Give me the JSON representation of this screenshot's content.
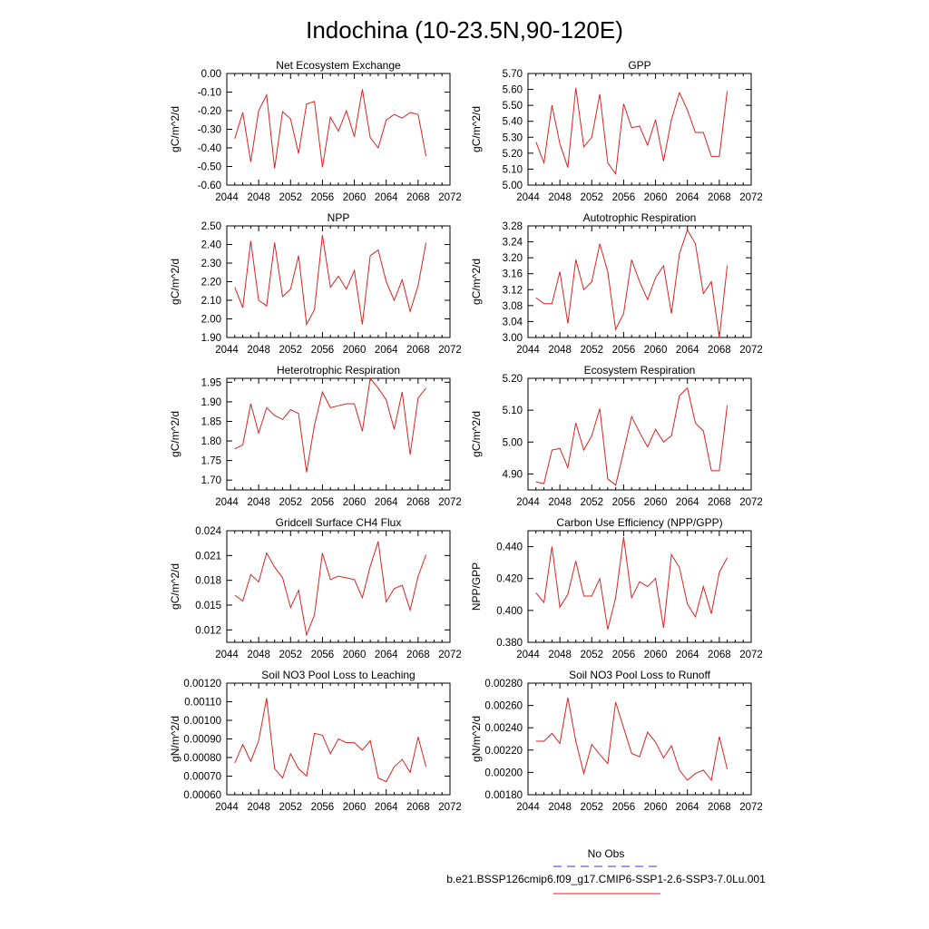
{
  "title": "Indochina (10-23.5N,90-120E)",
  "legend": {
    "entries": [
      {
        "label": "No Obs",
        "color": "#3333cc",
        "dash": true
      },
      {
        "label": "b.e21.BSSP126cmip6.f09_g17.CMIP6-SSP1-2.6-SSP3-7.0Lu.001",
        "color": "#dd2222",
        "dash": false
      }
    ],
    "placement": "bottom-right"
  },
  "chart_data": [
    {
      "type": "line",
      "title": "Net Ecosystem Exchange",
      "ylabel": "gC/m^2/d",
      "xlim": [
        2044,
        2072
      ],
      "xticks": [
        2044,
        2048,
        2052,
        2056,
        2060,
        2064,
        2068,
        2072
      ],
      "ylim": [
        -0.6,
        0.0
      ],
      "yticks": [
        "0.00",
        "-0.10",
        "-0.20",
        "-0.30",
        "-0.40",
        "-0.50",
        "-0.60"
      ],
      "x": [
        2045,
        2046,
        2047,
        2048,
        2049,
        2050,
        2051,
        2052,
        2053,
        2054,
        2055,
        2056,
        2057,
        2058,
        2059,
        2060,
        2061,
        2062,
        2063,
        2064,
        2065,
        2066,
        2067,
        2068,
        2069
      ],
      "series": [
        {
          "values": [
            -0.35,
            -0.21,
            -0.475,
            -0.2,
            -0.115,
            -0.51,
            -0.205,
            -0.245,
            -0.43,
            -0.165,
            -0.15,
            -0.505,
            -0.235,
            -0.31,
            -0.2,
            -0.34,
            -0.085,
            -0.345,
            -0.4,
            -0.25,
            -0.22,
            -0.24,
            -0.21,
            -0.22,
            -0.445
          ],
          "color": "#dd2222"
        }
      ]
    },
    {
      "type": "line",
      "title": "GPP",
      "ylabel": "gC/m^2/d",
      "xlim": [
        2044,
        2072
      ],
      "xticks": [
        2044,
        2048,
        2052,
        2056,
        2060,
        2064,
        2068,
        2072
      ],
      "ylim": [
        5.0,
        5.7
      ],
      "yticks": [
        "5.70",
        "5.60",
        "5.50",
        "5.40",
        "5.30",
        "5.20",
        "5.10",
        "5.00"
      ],
      "x": [
        2045,
        2046,
        2047,
        2048,
        2049,
        2050,
        2051,
        2052,
        2053,
        2054,
        2055,
        2056,
        2057,
        2058,
        2059,
        2060,
        2061,
        2062,
        2063,
        2064,
        2065,
        2066,
        2067,
        2068,
        2069
      ],
      "series": [
        {
          "values": [
            5.27,
            5.14,
            5.5,
            5.26,
            5.11,
            5.61,
            5.24,
            5.3,
            5.57,
            5.14,
            5.07,
            5.51,
            5.36,
            5.37,
            5.25,
            5.41,
            5.15,
            5.41,
            5.58,
            5.47,
            5.33,
            5.33,
            5.18,
            5.18,
            5.59
          ],
          "color": "#dd2222"
        }
      ]
    },
    {
      "type": "line",
      "title": "NPP",
      "ylabel": "gC/m^2/d",
      "xlim": [
        2044,
        2072
      ],
      "xticks": [
        2044,
        2048,
        2052,
        2056,
        2060,
        2064,
        2068,
        2072
      ],
      "ylim": [
        1.9,
        2.5
      ],
      "yticks": [
        "2.50",
        "2.40",
        "2.30",
        "2.20",
        "2.10",
        "2.00",
        "1.90"
      ],
      "x": [
        2045,
        2046,
        2047,
        2048,
        2049,
        2050,
        2051,
        2052,
        2053,
        2054,
        2055,
        2056,
        2057,
        2058,
        2059,
        2060,
        2061,
        2062,
        2063,
        2064,
        2065,
        2066,
        2067,
        2068,
        2069
      ],
      "series": [
        {
          "values": [
            2.17,
            2.06,
            2.42,
            2.1,
            2.07,
            2.41,
            2.12,
            2.16,
            2.34,
            1.97,
            2.05,
            2.45,
            2.17,
            2.23,
            2.16,
            2.26,
            1.97,
            2.34,
            2.37,
            2.2,
            2.1,
            2.21,
            2.04,
            2.18,
            2.41
          ],
          "color": "#dd2222"
        }
      ]
    },
    {
      "type": "line",
      "title": "Autotrophic Respiration",
      "ylabel": "gC/m^2/d",
      "xlim": [
        2044,
        2072
      ],
      "xticks": [
        2044,
        2048,
        2052,
        2056,
        2060,
        2064,
        2068,
        2072
      ],
      "ylim": [
        3.0,
        3.28
      ],
      "yticks": [
        "3.28",
        "3.24",
        "3.20",
        "3.16",
        "3.12",
        "3.08",
        "3.04",
        "3.00"
      ],
      "x": [
        2045,
        2046,
        2047,
        2048,
        2049,
        2050,
        2051,
        2052,
        2053,
        2054,
        2055,
        2056,
        2057,
        2058,
        2059,
        2060,
        2061,
        2062,
        2063,
        2064,
        2065,
        2066,
        2067,
        2068,
        2069
      ],
      "series": [
        {
          "values": [
            3.1,
            3.085,
            3.085,
            3.165,
            3.035,
            3.195,
            3.12,
            3.14,
            3.235,
            3.165,
            3.02,
            3.06,
            3.195,
            3.14,
            3.095,
            3.15,
            3.18,
            3.06,
            3.21,
            3.27,
            3.235,
            3.11,
            3.14,
            3.0,
            3.18
          ],
          "color": "#dd2222"
        }
      ]
    },
    {
      "type": "line",
      "title": "Heterotrophic Respiration",
      "ylabel": "gC/m^2/d",
      "xlim": [
        2044,
        2072
      ],
      "xticks": [
        2044,
        2048,
        2052,
        2056,
        2060,
        2064,
        2068,
        2072
      ],
      "ylim": [
        1.675,
        1.96
      ],
      "yticks": [
        "1.95",
        "1.90",
        "1.85",
        "1.80",
        "1.75",
        "1.70"
      ],
      "x": [
        2045,
        2046,
        2047,
        2048,
        2049,
        2050,
        2051,
        2052,
        2053,
        2054,
        2055,
        2056,
        2057,
        2058,
        2059,
        2060,
        2061,
        2062,
        2063,
        2064,
        2065,
        2066,
        2067,
        2068,
        2069
      ],
      "series": [
        {
          "values": [
            1.78,
            1.79,
            1.895,
            1.82,
            1.885,
            1.865,
            1.855,
            1.88,
            1.87,
            1.72,
            1.84,
            1.925,
            1.885,
            1.89,
            1.895,
            1.895,
            1.825,
            1.96,
            1.935,
            1.905,
            1.83,
            1.925,
            1.765,
            1.91,
            1.935
          ],
          "color": "#dd2222"
        }
      ]
    },
    {
      "type": "line",
      "title": "Ecosystem Respiration",
      "ylabel": "gC/m^2/d",
      "xlim": [
        2044,
        2072
      ],
      "xticks": [
        2044,
        2048,
        2052,
        2056,
        2060,
        2064,
        2068,
        2072
      ],
      "ylim": [
        4.85,
        5.2
      ],
      "yticks": [
        "5.20",
        "5.10",
        "5.00",
        "4.90"
      ],
      "x": [
        2045,
        2046,
        2047,
        2048,
        2049,
        2050,
        2051,
        2052,
        2053,
        2054,
        2055,
        2056,
        2057,
        2058,
        2059,
        2060,
        2061,
        2062,
        2063,
        2064,
        2065,
        2066,
        2067,
        2068,
        2069
      ],
      "series": [
        {
          "values": [
            4.875,
            4.87,
            4.975,
            4.98,
            4.92,
            5.06,
            4.975,
            5.02,
            5.105,
            4.885,
            4.865,
            4.97,
            5.08,
            5.03,
            4.985,
            5.04,
            5.0,
            5.02,
            5.145,
            5.17,
            5.06,
            5.035,
            4.91,
            4.91,
            5.115
          ],
          "color": "#dd2222"
        }
      ]
    },
    {
      "type": "line",
      "title": "Gridcell Surface CH4 Flux",
      "ylabel": "gC/m^2/d",
      "xlim": [
        2044,
        2072
      ],
      "xticks": [
        2044,
        2048,
        2052,
        2056,
        2060,
        2064,
        2068,
        2072
      ],
      "ylim": [
        0.0105,
        0.024
      ],
      "yticks": [
        "0.024",
        "0.021",
        "0.018",
        "0.015",
        "0.012"
      ],
      "x": [
        2045,
        2046,
        2047,
        2048,
        2049,
        2050,
        2051,
        2052,
        2053,
        2054,
        2055,
        2056,
        2057,
        2058,
        2059,
        2060,
        2061,
        2062,
        2063,
        2064,
        2065,
        2066,
        2067,
        2068,
        2069
      ],
      "series": [
        {
          "values": [
            0.0162,
            0.0155,
            0.0187,
            0.0178,
            0.0213,
            0.0196,
            0.0183,
            0.0147,
            0.0168,
            0.0114,
            0.0138,
            0.0213,
            0.0181,
            0.0185,
            0.0183,
            0.0181,
            0.0159,
            0.0197,
            0.0227,
            0.0154,
            0.017,
            0.0174,
            0.0144,
            0.0185,
            0.0211
          ],
          "color": "#dd2222"
        }
      ]
    },
    {
      "type": "line",
      "title": "Carbon Use Efficiency (NPP/GPP)",
      "ylabel": "NPP/GPP",
      "xlim": [
        2044,
        2072
      ],
      "xticks": [
        2044,
        2048,
        2052,
        2056,
        2060,
        2064,
        2068,
        2072
      ],
      "ylim": [
        0.38,
        0.45
      ],
      "yticks": [
        "0.440",
        "0.420",
        "0.400",
        "0.380"
      ],
      "x": [
        2045,
        2046,
        2047,
        2048,
        2049,
        2050,
        2051,
        2052,
        2053,
        2054,
        2055,
        2056,
        2057,
        2058,
        2059,
        2060,
        2061,
        2062,
        2063,
        2064,
        2065,
        2066,
        2067,
        2068,
        2069
      ],
      "series": [
        {
          "values": [
            0.411,
            0.405,
            0.44,
            0.402,
            0.41,
            0.431,
            0.409,
            0.409,
            0.42,
            0.388,
            0.408,
            0.446,
            0.408,
            0.418,
            0.415,
            0.42,
            0.389,
            0.435,
            0.427,
            0.404,
            0.396,
            0.415,
            0.398,
            0.424,
            0.433
          ],
          "color": "#dd2222"
        }
      ]
    },
    {
      "type": "line",
      "title": "Soil NO3 Pool Loss to Leaching",
      "ylabel": "gN/m^2/d",
      "xlim": [
        2044,
        2072
      ],
      "xticks": [
        2044,
        2048,
        2052,
        2056,
        2060,
        2064,
        2068,
        2072
      ],
      "ylim": [
        0.0006,
        0.0012
      ],
      "yticks": [
        "0.00120",
        "0.00110",
        "0.00100",
        "0.00090",
        "0.00080",
        "0.00070",
        "0.00060"
      ],
      "x": [
        2045,
        2046,
        2047,
        2048,
        2049,
        2050,
        2051,
        2052,
        2053,
        2054,
        2055,
        2056,
        2057,
        2058,
        2059,
        2060,
        2061,
        2062,
        2063,
        2064,
        2065,
        2066,
        2067,
        2068,
        2069
      ],
      "series": [
        {
          "values": [
            0.00077,
            0.00087,
            0.00078,
            0.00089,
            0.00112,
            0.00074,
            0.00069,
            0.00082,
            0.00074,
            0.0007,
            0.00093,
            0.00092,
            0.00082,
            0.0009,
            0.00088,
            0.00088,
            0.00084,
            0.00089,
            0.00069,
            0.00067,
            0.00075,
            0.00079,
            0.00072,
            0.00091,
            0.00075
          ],
          "color": "#dd2222"
        }
      ]
    },
    {
      "type": "line",
      "title": "Soil NO3 Pool Loss to Runoff",
      "ylabel": "gN/m^2/d",
      "xlim": [
        2044,
        2072
      ],
      "xticks": [
        2044,
        2048,
        2052,
        2056,
        2060,
        2064,
        2068,
        2072
      ],
      "ylim": [
        0.0018,
        0.0028
      ],
      "yticks": [
        "0.00280",
        "0.00260",
        "0.00240",
        "0.00220",
        "0.00200",
        "0.00180"
      ],
      "x": [
        2045,
        2046,
        2047,
        2048,
        2049,
        2050,
        2051,
        2052,
        2053,
        2054,
        2055,
        2056,
        2057,
        2058,
        2059,
        2060,
        2061,
        2062,
        2063,
        2064,
        2065,
        2066,
        2067,
        2068,
        2069
      ],
      "series": [
        {
          "values": [
            0.00228,
            0.00228,
            0.00235,
            0.00226,
            0.00267,
            0.00228,
            0.00199,
            0.00225,
            0.00216,
            0.00208,
            0.00263,
            0.0024,
            0.00217,
            0.00214,
            0.00236,
            0.00227,
            0.00213,
            0.00224,
            0.00202,
            0.00193,
            0.00199,
            0.00202,
            0.00193,
            0.00232,
            0.00203
          ],
          "color": "#dd2222"
        }
      ]
    }
  ]
}
